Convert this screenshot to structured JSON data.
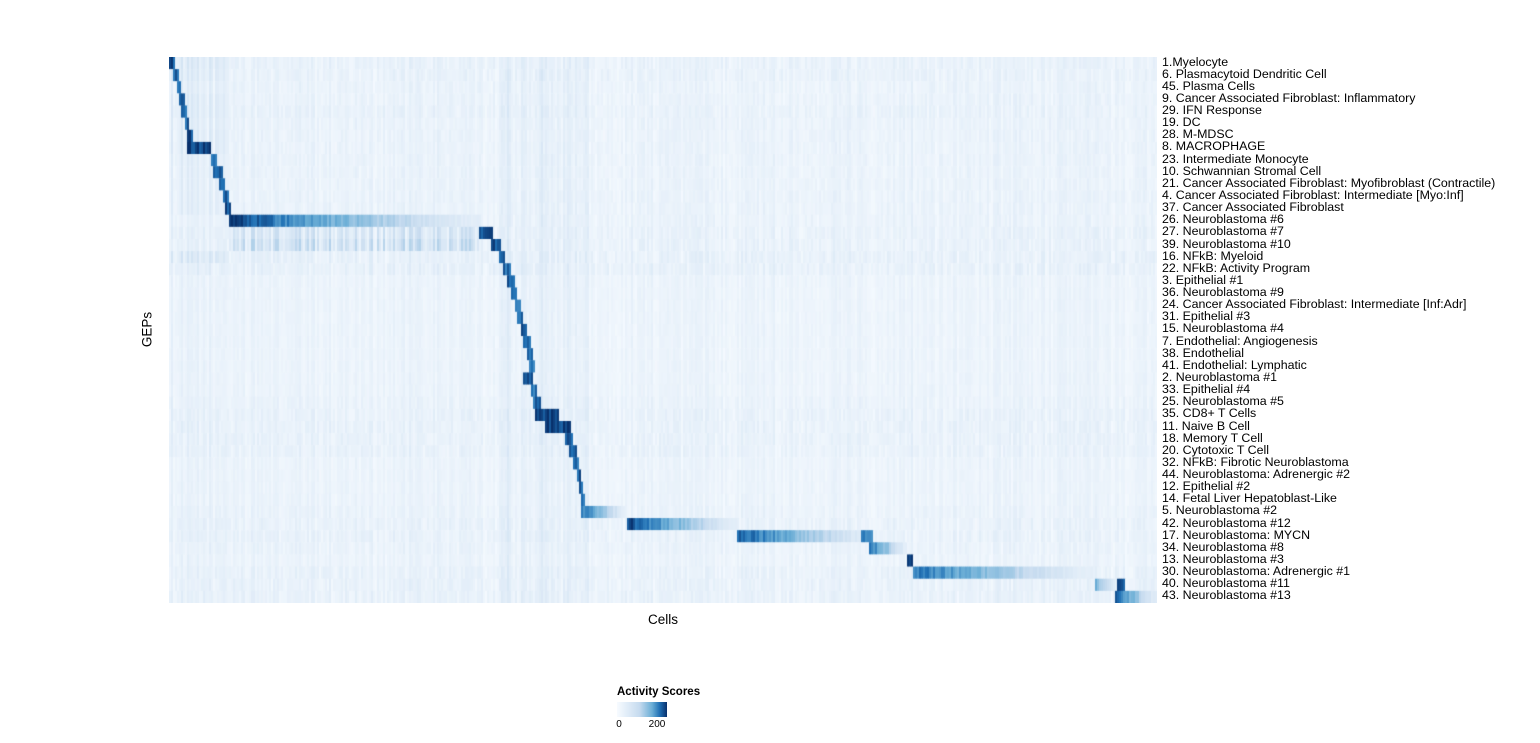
{
  "chart_data": {
    "type": "heatmap",
    "title": "",
    "xlabel": "Cells",
    "ylabel": "GEPs",
    "legend": {
      "title": "Activity Scores",
      "ticks": [
        "0",
        "200"
      ],
      "colormap": {
        "positions": [
          0,
          0.25,
          0.5,
          0.75,
          1
        ],
        "colors": [
          "#f7fbff",
          "#c6dbef",
          "#6baed6",
          "#2171b5",
          "#08306b"
        ]
      }
    },
    "stripes": [
      {
        "x0": 0.0,
        "x1": 0.06,
        "s": 0.025
      },
      {
        "x0": 0.061,
        "x1": 0.313,
        "s": 0.015
      },
      {
        "x0": 0.335,
        "x1": 0.425,
        "s": 0.04
      },
      {
        "x0": 0.341,
        "x1": 0.347,
        "s": 0.05
      },
      {
        "x0": 0.372,
        "x1": 0.379,
        "s": 0.05
      },
      {
        "x0": 0.464,
        "x1": 0.575,
        "s": 0.012
      },
      {
        "x0": 0.575,
        "x1": 0.745,
        "s": 0.012
      },
      {
        "x0": 0.578,
        "x1": 0.598,
        "s": 0.025
      },
      {
        "x0": 0.746,
        "x1": 0.753,
        "s": 0.04
      },
      {
        "x0": 0.753,
        "x1": 0.938,
        "s": 0.01
      },
      {
        "x0": 0.938,
        "x1": 0.945,
        "s": 0.03
      }
    ],
    "rows": [
      {
        "label": "1.Myelocyte",
        "tex": 2,
        "blocks": [
          {
            "x0": 0,
            "x1": 0.06,
            "peak": 0.13
          },
          {
            "x0": 0.0,
            "x1": 0.007,
            "peak": 0.9
          }
        ]
      },
      {
        "label": "6. Plasmacytoid Dendritic Cell",
        "tex": 2,
        "blocks": [
          {
            "x0": 0,
            "x1": 0.06,
            "peak": 0.12
          },
          {
            "x0": 0.005,
            "x1": 0.01,
            "peak": 0.85
          }
        ]
      },
      {
        "label": "45. Plasma Cells",
        "tex": 1.5,
        "blocks": [
          {
            "x0": 0,
            "x1": 0.06,
            "peak": 0.1
          },
          {
            "x0": 0.008,
            "x1": 0.012,
            "peak": 0.85
          }
        ]
      },
      {
        "label": "9. Cancer Associated Fibroblast: Inflammatory",
        "tex": 1.5,
        "blocks": [
          {
            "x0": 0,
            "x1": 0.06,
            "peak": 0.12
          },
          {
            "x0": 0.01,
            "x1": 0.016,
            "peak": 0.9
          }
        ]
      },
      {
        "label": "29. IFN Response",
        "tex": 2,
        "blocks": [
          {
            "x0": 0,
            "x1": 0.06,
            "peak": 0.12
          },
          {
            "x0": 0.013,
            "x1": 0.019,
            "peak": 0.85
          }
        ]
      },
      {
        "label": "19. DC",
        "tex": 1.5,
        "blocks": [
          {
            "x0": 0,
            "x1": 0.06,
            "peak": 0.11
          },
          {
            "x0": 0.016,
            "x1": 0.021,
            "peak": 0.85
          }
        ]
      },
      {
        "label": "28. M-MDSC",
        "tex": 1.5,
        "blocks": [
          {
            "x0": 0,
            "x1": 0.06,
            "peak": 0.12
          },
          {
            "x0": 0.018,
            "x1": 0.025,
            "peak": 0.9
          }
        ]
      },
      {
        "label": "8. MACROPHAGE",
        "tex": 1.5,
        "blocks": [
          {
            "x0": 0,
            "x1": 0.06,
            "peak": 0.12
          },
          {
            "x0": 0.018,
            "x1": 0.042,
            "peak": 0.95
          }
        ]
      },
      {
        "label": "23. Intermediate Monocyte",
        "tex": 1.5,
        "blocks": [
          {
            "x0": 0,
            "x1": 0.06,
            "peak": 0.1
          },
          {
            "x0": 0.042,
            "x1": 0.049,
            "peak": 0.85
          }
        ]
      },
      {
        "label": "10. Schwannian Stromal Cell",
        "tex": 1.5,
        "blocks": [
          {
            "x0": 0,
            "x1": 0.06,
            "peak": 0.1
          },
          {
            "x0": 0.045,
            "x1": 0.055,
            "peak": 0.92
          }
        ]
      },
      {
        "label": "21. Cancer Associated Fibroblast: Myofibroblast (Contractile)",
        "tex": 1.5,
        "blocks": [
          {
            "x0": 0,
            "x1": 0.06,
            "peak": 0.1
          },
          {
            "x0": 0.05,
            "x1": 0.057,
            "peak": 0.85
          }
        ]
      },
      {
        "label": "4. Cancer Associated Fibroblast: Intermediate [Myo:Inf]",
        "tex": 1.5,
        "blocks": [
          {
            "x0": 0,
            "x1": 0.06,
            "peak": 0.1
          },
          {
            "x0": 0.054,
            "x1": 0.06,
            "peak": 0.85
          }
        ]
      },
      {
        "label": "37. Cancer Associated Fibroblast",
        "tex": 1.5,
        "blocks": [
          {
            "x0": 0,
            "x1": 0.06,
            "peak": 0.1
          },
          {
            "x0": 0.056,
            "x1": 0.063,
            "peak": 0.92
          }
        ]
      },
      {
        "label": "26. Neuroblastoma #6",
        "tex": 1.5,
        "blocks": [
          {
            "x0": 0.061,
            "x1": 0.315,
            "peak": 0.95,
            "fade": "right"
          }
        ]
      },
      {
        "label": "27. Neuroblastoma #7",
        "tex": 2,
        "blocks": [
          {
            "x0": 0.061,
            "x1": 0.313,
            "peak": 0.18
          },
          {
            "x0": 0.313,
            "x1": 0.328,
            "peak": 0.95
          }
        ]
      },
      {
        "label": "39. Neuroblastoma #10",
        "tex": 2,
        "blocks": [
          {
            "x0": 0.061,
            "x1": 0.313,
            "peak": 0.22
          },
          {
            "x0": 0.326,
            "x1": 0.337,
            "peak": 0.9
          }
        ]
      },
      {
        "label": "16. NFkB: Myeloid",
        "tex": 2.5,
        "blocks": [
          {
            "x0": 0,
            "x1": 0.06,
            "peak": 0.14
          },
          {
            "x0": 0.334,
            "x1": 0.341,
            "peak": 0.8
          }
        ]
      },
      {
        "label": "22. NFkB: Activity Program",
        "tex": 2.5,
        "blocks": [
          {
            "x0": 0.338,
            "x1": 0.346,
            "peak": 0.8
          }
        ]
      },
      {
        "label": "3. Epithelial #1",
        "blocks": [
          {
            "x0": 0.343,
            "x1": 0.35,
            "peak": 0.85
          }
        ]
      },
      {
        "label": "36. Neuroblastoma #9",
        "blocks": [
          {
            "x0": 0.347,
            "x1": 0.353,
            "peak": 0.85
          }
        ]
      },
      {
        "label": "24. Cancer Associated Fibroblast: Intermediate [Inf:Adr]",
        "blocks": [
          {
            "x0": 0.35,
            "x1": 0.356,
            "peak": 0.8
          }
        ]
      },
      {
        "label": "31. Epithelial #3",
        "blocks": [
          {
            "x0": 0.353,
            "x1": 0.359,
            "peak": 0.85
          }
        ]
      },
      {
        "label": "15. Neuroblastoma #4",
        "blocks": [
          {
            "x0": 0.356,
            "x1": 0.363,
            "peak": 0.92
          }
        ]
      },
      {
        "label": "7. Endothelial: Angiogenesis",
        "blocks": [
          {
            "x0": 0.359,
            "x1": 0.366,
            "peak": 0.85
          }
        ]
      },
      {
        "label": "38. Endothelial",
        "blocks": [
          {
            "x0": 0.362,
            "x1": 0.368,
            "peak": 0.85
          }
        ]
      },
      {
        "label": "41. Endothelial: Lymphatic",
        "blocks": [
          {
            "x0": 0.364,
            "x1": 0.37,
            "peak": 0.8
          }
        ]
      },
      {
        "label": "2. Neuroblastoma #1",
        "blocks": [
          {
            "x0": 0.358,
            "x1": 0.369,
            "peak": 0.95
          }
        ]
      },
      {
        "label": "33. Epithelial #4",
        "blocks": [
          {
            "x0": 0.367,
            "x1": 0.373,
            "peak": 0.8
          }
        ]
      },
      {
        "label": "25. Neuroblastoma #5",
        "tex": 1.5,
        "blocks": [
          {
            "x0": 0.369,
            "x1": 0.377,
            "peak": 0.85
          }
        ]
      },
      {
        "label": "35. CD8+ T Cells",
        "tex": 2,
        "blocks": [
          {
            "x0": 0.371,
            "x1": 0.395,
            "peak": 0.95
          }
        ]
      },
      {
        "label": "11. Naive B Cell",
        "tex": 2,
        "blocks": [
          {
            "x0": 0.381,
            "x1": 0.407,
            "peak": 0.95
          }
        ]
      },
      {
        "label": "18. Memory T Cell",
        "tex": 2,
        "blocks": [
          {
            "x0": 0.4,
            "x1": 0.409,
            "peak": 0.85
          }
        ]
      },
      {
        "label": "20. Cytotoxic T Cell",
        "tex": 2,
        "blocks": [
          {
            "x0": 0.405,
            "x1": 0.412,
            "peak": 0.85
          }
        ]
      },
      {
        "label": "32. NFkB: Fibrotic Neuroblastoma",
        "blocks": [
          {
            "x0": 0.409,
            "x1": 0.415,
            "peak": 0.8
          }
        ]
      },
      {
        "label": "44. Neuroblastoma: Adrenergic #2",
        "blocks": [
          {
            "x0": 0.412,
            "x1": 0.417,
            "peak": 0.85
          }
        ]
      },
      {
        "label": "12. Epithelial #2",
        "blocks": [
          {
            "x0": 0.414,
            "x1": 0.419,
            "peak": 0.8
          }
        ]
      },
      {
        "label": "14. Fetal Liver Hepatoblast-Like",
        "blocks": [
          {
            "x0": 0.416,
            "x1": 0.421,
            "peak": 0.85
          }
        ]
      },
      {
        "label": "5. Neuroblastoma #2",
        "tex": 1.5,
        "blocks": [
          {
            "x0": 0.417,
            "x1": 0.464,
            "peak": 0.8,
            "fade": "right"
          }
        ]
      },
      {
        "label": "42. Neuroblastoma #12",
        "tex": 2,
        "blocks": [
          {
            "x0": 0.464,
            "x1": 0.575,
            "peak": 0.95,
            "fade": "right"
          }
        ]
      },
      {
        "label": "17. Neuroblastoma: MYCN",
        "tex": 2,
        "blocks": [
          {
            "x0": 0.575,
            "x1": 0.712,
            "peak": 0.9,
            "fade": "right"
          },
          {
            "x0": 0.7,
            "x1": 0.712,
            "peak": 0.7
          }
        ]
      },
      {
        "label": "34. Neuroblastoma #8",
        "tex": 1.5,
        "blocks": [
          {
            "x0": 0.708,
            "x1": 0.747,
            "peak": 0.85,
            "fade": "right"
          }
        ]
      },
      {
        "label": "13. Neuroblastoma #3",
        "blocks": [
          {
            "x0": 0.747,
            "x1": 0.754,
            "peak": 0.95
          }
        ]
      },
      {
        "label": "30. Neuroblastoma: Adrenergic #1",
        "tex": 2,
        "blocks": [
          {
            "x0": 0.753,
            "x1": 0.938,
            "peak": 0.78,
            "fade": "right"
          }
        ]
      },
      {
        "label": "40. Neuroblastoma #11",
        "tex": 2,
        "blocks": [
          {
            "x0": 0.938,
            "x1": 0.962,
            "peak": 0.5,
            "fade": "right"
          },
          {
            "x0": 0.96,
            "x1": 0.968,
            "peak": 0.95
          }
        ]
      },
      {
        "label": "43. Neuroblastoma #13",
        "tex": 2,
        "blocks": [
          {
            "x0": 0.957,
            "x1": 1.0,
            "peak": 0.9,
            "fade": "right"
          }
        ]
      }
    ]
  }
}
